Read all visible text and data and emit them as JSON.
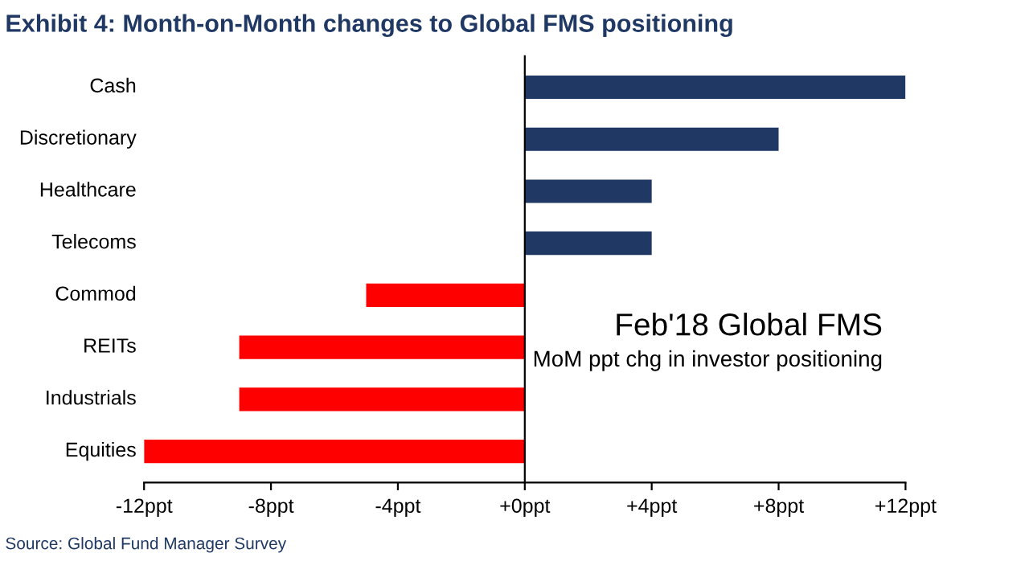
{
  "chart_data": {
    "type": "bar",
    "orientation": "horizontal",
    "title": "Exhibit 4: Month-on-Month changes to Global FMS positioning",
    "categories": [
      "Cash",
      "Discretionary",
      "Healthcare",
      "Telecoms",
      "Commod",
      "REITs",
      "Industrials",
      "Equities"
    ],
    "values": [
      12,
      8,
      4,
      4,
      -5,
      -9,
      -9,
      -12
    ],
    "colors": [
      "#1f3864",
      "#1f3864",
      "#1f3864",
      "#1f3864",
      "#ff0000",
      "#ff0000",
      "#ff0000",
      "#ff0000"
    ],
    "xlim": [
      -12,
      12
    ],
    "xticks": [
      {
        "value": -12,
        "label": "-12ppt"
      },
      {
        "value": -8,
        "label": "-8ppt"
      },
      {
        "value": -4,
        "label": "-4ppt"
      },
      {
        "value": 0,
        "label": "+0ppt"
      },
      {
        "value": 4,
        "label": "+4ppt"
      },
      {
        "value": 8,
        "label": "+8ppt"
      },
      {
        "value": 12,
        "label": "+12ppt"
      }
    ],
    "annotations": [
      "Feb'18 Global FMS",
      "MoM ppt chg in investor positioning",
      "Source: Global Fund Manager Survey"
    ],
    "legend": false
  }
}
